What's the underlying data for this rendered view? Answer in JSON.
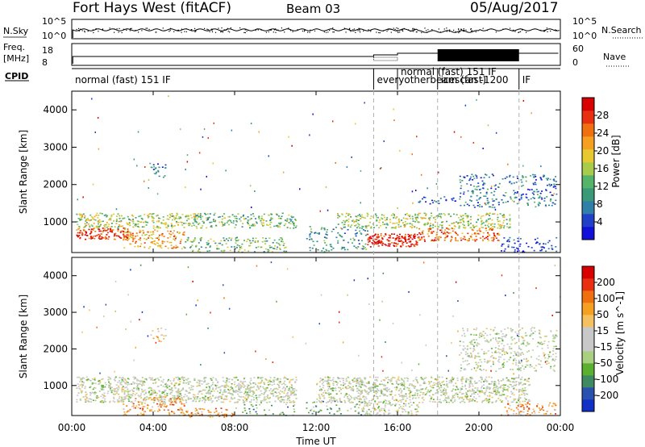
{
  "header": {
    "title": "Fort Hays West (fitACF)",
    "beam": "Beam 03",
    "date": "05/Aug/2017"
  },
  "colors": {
    "power_scale": [
      "#1010d8",
      "#2040c8",
      "#2f7fa8",
      "#3a9a78",
      "#55b36a",
      "#a8cc4a",
      "#e8c830",
      "#f5a020",
      "#f07010",
      "#e83010",
      "#d80000"
    ],
    "velocity_scale": [
      "#1030c8",
      "#2a50b0",
      "#3f8a60",
      "#5cb030",
      "#a8d080",
      "#c8c8c8",
      "#c8c8c8",
      "#f5c060",
      "#f5a020",
      "#f07010",
      "#e83010",
      "#d80000"
    ],
    "dashed_line": "#b0b0b0"
  },
  "chart_data": [
    {
      "type": "line",
      "name": "nsky-nsearch",
      "left_label": "N.Sky",
      "right_label": "N.Search",
      "left_ticks": [
        "10^5",
        "10^0"
      ],
      "right_ticks": [
        "10^5",
        "10^0"
      ]
    },
    {
      "type": "line",
      "name": "freq-nave",
      "left_label": "Freq.",
      "left_unit": "[MHz]",
      "right_label": "Nave",
      "left_ticks": [
        "18",
        "8"
      ],
      "right_ticks": [
        "60",
        "0"
      ]
    },
    {
      "type": "table",
      "name": "cpid",
      "label": "CPID",
      "segments": [
        {
          "label": "normal (fast) 151 IF",
          "start": 0
        },
        {
          "label": "everyotherbeam (fast)",
          "start": 14.83
        },
        {
          "label": "normal (fast) 151 IF",
          "start": 16.0
        },
        {
          "label": "icescan -1200",
          "start": 17.97
        },
        {
          "label": "IF",
          "start": 21.97
        }
      ]
    },
    {
      "type": "heatmap",
      "name": "power",
      "ylabel": "Slant Range [km]",
      "ylim": [
        180,
        4500
      ],
      "yticks": [
        1000,
        2000,
        3000,
        4000
      ],
      "colorbar_label": "Power [dB]",
      "colorbar_ticks": [
        4,
        8,
        12,
        16,
        20,
        24,
        28
      ]
    },
    {
      "type": "heatmap",
      "name": "velocity",
      "ylabel": "Slant Range [km]",
      "xlabel": "Time UT",
      "ylim": [
        180,
        4500
      ],
      "yticks": [
        1000,
        2000,
        3000,
        4000
      ],
      "xlim": [
        0,
        24
      ],
      "xticks": [
        0,
        4,
        8,
        12,
        16,
        20,
        24
      ],
      "xtick_labels": [
        "00:00",
        "04:00",
        "08:00",
        "12:00",
        "16:00",
        "20:00",
        "00:00"
      ],
      "colorbar_label": "Velocity [m s^-1]",
      "colorbar_ticks": [
        "200",
        "100",
        "50",
        "15",
        "-15",
        "-50",
        "-100",
        "-200"
      ]
    }
  ],
  "scatter_regions": {
    "power": [
      {
        "t0": 0.2,
        "t1": 2.8,
        "r0": 550,
        "r1": 850,
        "level": 9,
        "density": 0.85
      },
      {
        "t0": 0.2,
        "t1": 6.2,
        "r0": 850,
        "r1": 1250,
        "level": 5,
        "density": 0.6
      },
      {
        "t0": 2.5,
        "t1": 5.5,
        "r0": 300,
        "r1": 800,
        "level": 7,
        "density": 0.5
      },
      {
        "t0": 5.5,
        "t1": 10.5,
        "r0": 200,
        "r1": 600,
        "level": 4,
        "density": 0.4
      },
      {
        "t0": 3.8,
        "t1": 4.6,
        "r0": 2200,
        "r1": 2600,
        "level": 2,
        "density": 0.35
      },
      {
        "t0": 6,
        "t1": 11,
        "r0": 850,
        "r1": 1250,
        "level": 4,
        "density": 0.5
      },
      {
        "t0": 11.5,
        "t1": 14.5,
        "r0": 220,
        "r1": 900,
        "level": 3,
        "density": 0.3
      },
      {
        "t0": 14.5,
        "t1": 17,
        "r0": 350,
        "r1": 700,
        "level": 10,
        "density": 0.95
      },
      {
        "t0": 13,
        "t1": 21.5,
        "r0": 850,
        "r1": 1250,
        "level": 5,
        "density": 0.55
      },
      {
        "t0": 17,
        "t1": 21,
        "r0": 500,
        "r1": 850,
        "level": 8,
        "density": 0.6
      },
      {
        "t0": 19,
        "t1": 23.8,
        "r0": 1400,
        "r1": 2300,
        "level": 2,
        "density": 0.3
      },
      {
        "t0": 21,
        "t1": 23.8,
        "r0": 200,
        "r1": 600,
        "level": 1,
        "density": 0.3
      },
      {
        "t0": 17,
        "t1": 19,
        "r0": 1500,
        "r1": 1700,
        "level": 1,
        "density": 0.3
      }
    ],
    "velocity": [
      {
        "t0": 0.2,
        "t1": 11,
        "r0": 550,
        "r1": 1250,
        "level": 5,
        "density": 0.75
      },
      {
        "t0": 2.5,
        "t1": 5.5,
        "r0": 200,
        "r1": 700,
        "level": 8,
        "density": 0.45
      },
      {
        "t0": 5.5,
        "t1": 8,
        "r0": 150,
        "r1": 400,
        "level": 8,
        "density": 0.5
      },
      {
        "t0": 8,
        "t1": 11,
        "r0": 200,
        "r1": 500,
        "level": 3,
        "density": 0.2
      },
      {
        "t0": 3.8,
        "t1": 4.6,
        "r0": 2200,
        "r1": 2600,
        "level": 7,
        "density": 0.3
      },
      {
        "t0": 12,
        "t1": 22.5,
        "r0": 550,
        "r1": 1250,
        "level": 5,
        "density": 0.7
      },
      {
        "t0": 14,
        "t1": 17,
        "r0": 200,
        "r1": 550,
        "level": 5,
        "density": 0.6
      },
      {
        "t0": 19,
        "t1": 23.8,
        "r0": 1400,
        "r1": 2600,
        "level": 5,
        "density": 0.35
      },
      {
        "t0": 21,
        "t1": 23.8,
        "r0": 200,
        "r1": 550,
        "level": 8,
        "density": 0.4
      },
      {
        "t0": 11.5,
        "t1": 14.5,
        "r0": 200,
        "r1": 600,
        "level": 3,
        "density": 0.2
      }
    ]
  },
  "dashed_times": [
    14.83,
    17.97,
    21.97
  ]
}
